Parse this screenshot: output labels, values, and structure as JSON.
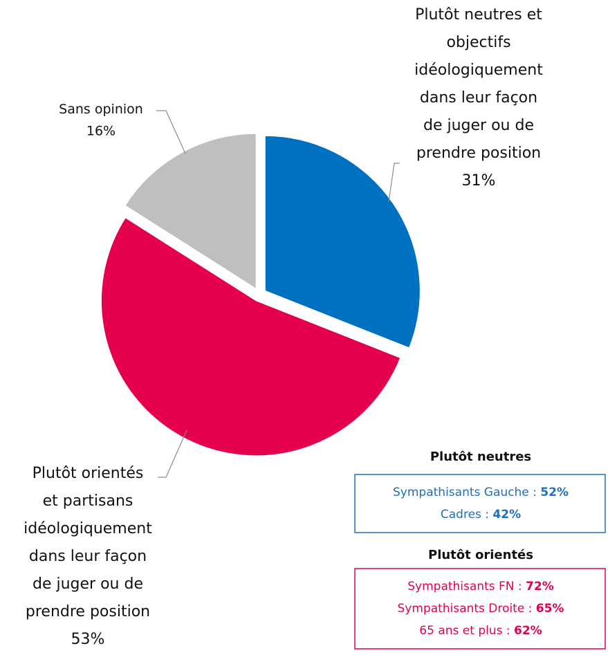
{
  "chart_data": {
    "type": "pie",
    "categories": [
      "Plutôt neutres et\nobjectifs\nidéologiquement\ndans leur façon\nde juger ou de\nprendre position",
      "Plutôt orientés\net partisans\nidéologiquement\ndans leur façon\nde juger ou de\nprendre position",
      "Sans opinion"
    ],
    "values": [
      31,
      53,
      16
    ],
    "value_labels": [
      "31%",
      "53%",
      "16%"
    ],
    "colors": [
      "#0070c0",
      "#e4004b",
      "#bfbfbf"
    ]
  },
  "notes": [
    {
      "title": "Plutôt neutres",
      "color": "#1f6fba",
      "items": [
        {
          "label": "Sympathisants Gauche : ",
          "value": "52%"
        },
        {
          "label": "Cadres : ",
          "value": "42%"
        }
      ]
    },
    {
      "title": "Plutôt orientés",
      "color": "#e4004b",
      "items": [
        {
          "label": "Sympathisants FN : ",
          "value": "72%"
        },
        {
          "label": "Sympathisants Droite : ",
          "value": "65%"
        },
        {
          "label": "65 ans et plus : ",
          "value": "62%"
        }
      ]
    }
  ]
}
